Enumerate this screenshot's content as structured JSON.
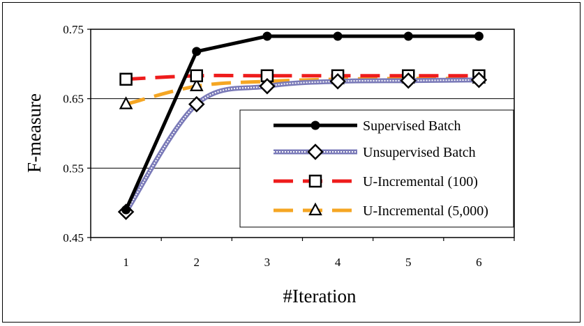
{
  "chart_data": {
    "type": "line",
    "title": "",
    "xlabel": "#Iteration",
    "ylabel": "F-measure",
    "x": [
      1,
      2,
      3,
      4,
      5,
      6
    ],
    "xticks": [
      "1",
      "2",
      "3",
      "4",
      "5",
      "6"
    ],
    "yticks": [
      "0.45",
      "0.55",
      "0.65",
      "0.75"
    ],
    "ylim": [
      0.45,
      0.75
    ],
    "grid": "horizontal",
    "legend_position": "bottom-right",
    "series": [
      {
        "name": "Supervised Batch",
        "values": [
          0.49,
          0.718,
          0.74,
          0.74,
          0.74,
          0.74
        ],
        "color": "#000000",
        "marker": "circle",
        "line": "solid"
      },
      {
        "name": "Unsupervised Batch",
        "values": [
          0.487,
          0.642,
          0.668,
          0.675,
          0.676,
          0.677
        ],
        "color": "#7a7ab8",
        "marker": "diamond",
        "line": "double"
      },
      {
        "name": "U-Incremental (100)",
        "values": [
          0.678,
          0.683,
          0.683,
          0.683,
          0.683,
          0.683
        ],
        "color": "#ee1c1c",
        "marker": "square",
        "line": "dashed"
      },
      {
        "name": "U-Incremental (5,000)",
        "values": [
          0.642,
          0.668,
          0.675,
          0.678,
          0.679,
          0.679
        ],
        "color": "#f5a623",
        "marker": "triangle",
        "line": "dashed"
      }
    ]
  }
}
